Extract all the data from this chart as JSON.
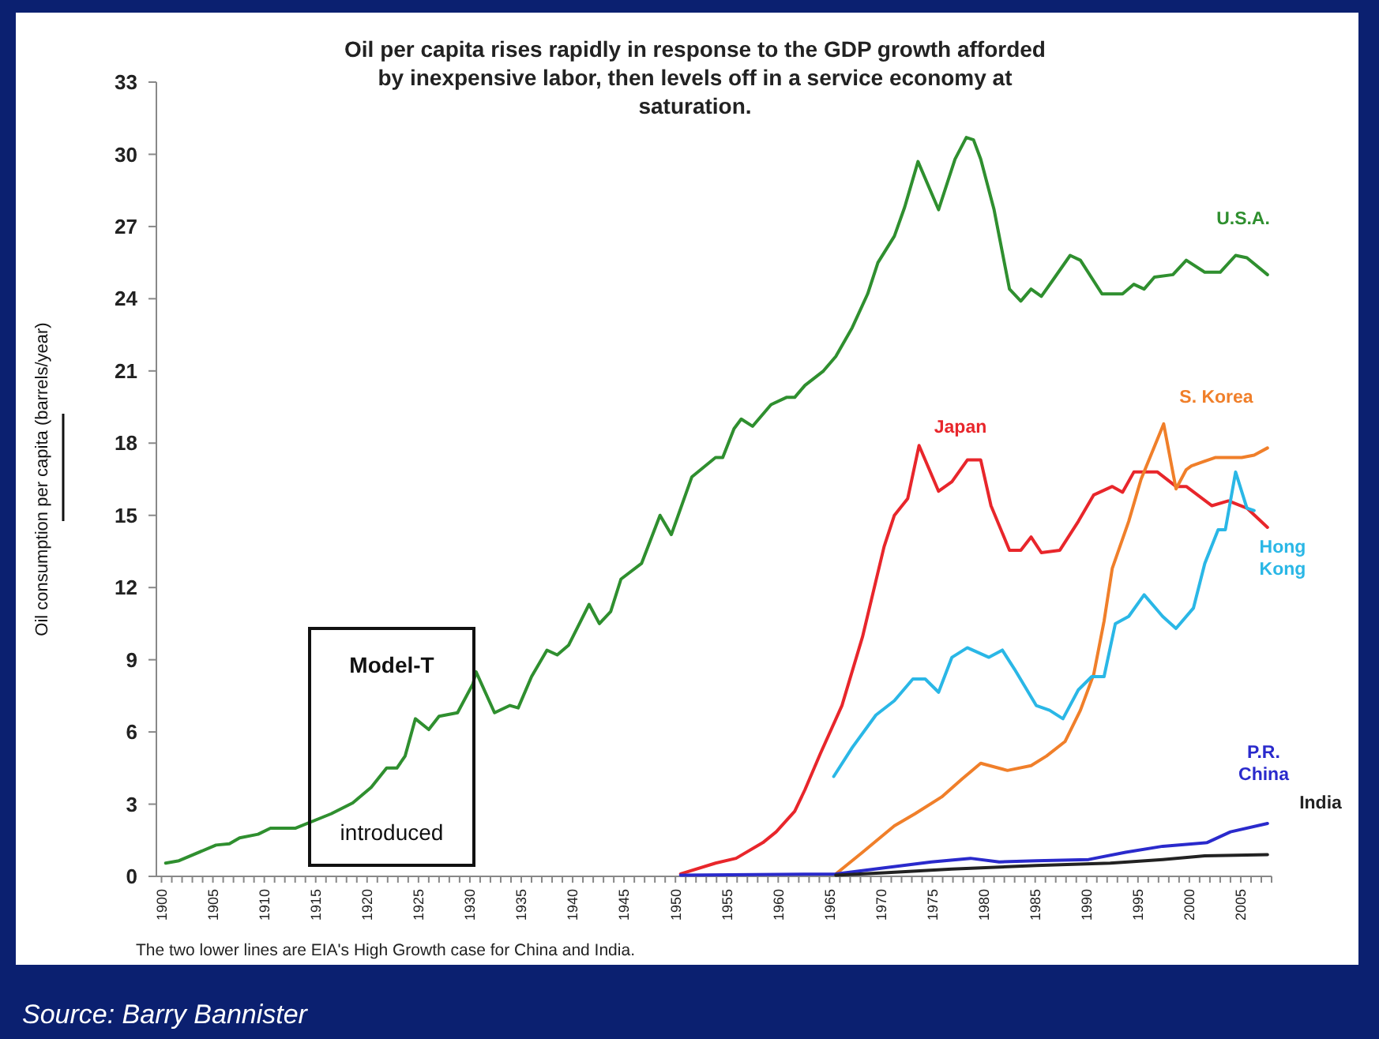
{
  "chart_data": {
    "type": "line",
    "title": "Oil per capita rises rapidly in response to the GDP growth afforded by inexpensive labor, then levels off in a service economy at saturation.",
    "ylabel": "Oil consumption per capita (barrels/year)",
    "xlim": [
      1899.5,
      2008
    ],
    "ylim": [
      0,
      33
    ],
    "yticks": [
      0,
      3,
      6,
      9,
      12,
      15,
      18,
      21,
      24,
      27,
      30,
      33
    ],
    "xticks": [
      1900,
      {
        "value": 1901,
        "label": null
      },
      {
        "value": 1902,
        "label": null
      },
      {
        "value": 1903,
        "label": null
      },
      {
        "value": 1904,
        "label": null
      },
      1905,
      {
        "value": 1906,
        "label": null
      },
      {
        "value": 1907,
        "label": null
      },
      {
        "value": 1908,
        "label": null
      },
      {
        "value": 1909,
        "label": null
      },
      1910,
      {
        "value": 1911,
        "label": null
      },
      {
        "value": 1912,
        "label": null
      },
      {
        "value": 1913,
        "label": null
      },
      {
        "value": 1914,
        "label": null
      },
      1915,
      {
        "value": 1916,
        "label": null
      },
      {
        "value": 1917,
        "label": null
      },
      {
        "value": 1918,
        "label": null
      },
      {
        "value": 1919,
        "label": null
      },
      1920,
      {
        "value": 1921,
        "label": null
      },
      {
        "value": 1922,
        "label": null
      },
      {
        "value": 1923,
        "label": null
      },
      {
        "value": 1924,
        "label": null
      },
      1925,
      {
        "value": 1926,
        "label": null
      },
      {
        "value": 1927,
        "label": null
      },
      {
        "value": 1928,
        "label": null
      },
      {
        "value": 1929,
        "label": null
      },
      1930,
      {
        "value": 1931,
        "label": null
      },
      {
        "value": 1932,
        "label": null
      },
      {
        "value": 1933,
        "label": null
      },
      {
        "value": 1934,
        "label": null
      },
      1935,
      {
        "value": 1936,
        "label": null
      },
      {
        "value": 1937,
        "label": null
      },
      {
        "value": 1938,
        "label": null
      },
      {
        "value": 1939,
        "label": null
      },
      1940,
      {
        "value": 1941,
        "label": null
      },
      {
        "value": 1942,
        "label": null
      },
      {
        "value": 1943,
        "label": null
      },
      {
        "value": 1944,
        "label": null
      },
      1945,
      {
        "value": 1946,
        "label": null
      },
      {
        "value": 1947,
        "label": null
      },
      {
        "value": 1948,
        "label": null
      },
      {
        "value": 1949,
        "label": null
      },
      1950,
      {
        "value": 1951,
        "label": null
      },
      {
        "value": 1952,
        "label": null
      },
      {
        "value": 1953,
        "label": null
      },
      {
        "value": 1954,
        "label": null
      },
      1955,
      {
        "value": 1956,
        "label": null
      },
      {
        "value": 1957,
        "label": null
      },
      {
        "value": 1958,
        "label": null
      },
      {
        "value": 1959,
        "label": null
      },
      1960,
      {
        "value": 1961,
        "label": null
      },
      {
        "value": 1962,
        "label": null
      },
      {
        "value": 1963,
        "label": null
      },
      {
        "value": 1964,
        "label": null
      },
      1965,
      {
        "value": 1966,
        "label": null
      },
      {
        "value": 1967,
        "label": null
      },
      {
        "value": 1968,
        "label": null
      },
      {
        "value": 1969,
        "label": null
      },
      1970,
      {
        "value": 1971,
        "label": null
      },
      {
        "value": 1972,
        "label": null
      },
      {
        "value": 1973,
        "label": null
      },
      {
        "value": 1974,
        "label": null
      },
      1975,
      {
        "value": 1976,
        "label": null
      },
      {
        "value": 1977,
        "label": null
      },
      {
        "value": 1978,
        "label": null
      },
      {
        "value": 1979,
        "label": null
      },
      1980,
      {
        "value": 1981,
        "label": null
      },
      {
        "value": 1982,
        "label": null
      },
      {
        "value": 1983,
        "label": null
      },
      {
        "value": 1984,
        "label": null
      },
      1985,
      {
        "value": 1986,
        "label": null
      },
      {
        "value": 1987,
        "label": null
      },
      {
        "value": 1988,
        "label": null
      },
      {
        "value": 1989,
        "label": null
      },
      1990,
      {
        "value": 1991,
        "label": null
      },
      {
        "value": 1992,
        "label": null
      },
      {
        "value": 1993,
        "label": null
      },
      {
        "value": 1994,
        "label": null
      },
      1995,
      {
        "value": 1996,
        "label": null
      },
      {
        "value": 1997,
        "label": null
      },
      {
        "value": 1998,
        "label": null
      },
      {
        "value": 1999,
        "label": null
      },
      2000,
      {
        "value": 2001,
        "label": null
      },
      {
        "value": 2002,
        "label": null
      },
      {
        "value": 2003,
        "label": null
      },
      {
        "value": 2004,
        "label": null
      },
      2005,
      {
        "value": 2006,
        "label": null
      },
      {
        "value": 2007,
        "label": null
      },
      {
        "value": 2008,
        "label": null
      }
    ],
    "grid": false,
    "marker": "none",
    "line_style": "solid",
    "series": [
      {
        "name": "U.S.A.",
        "color": "#2f8f2f",
        "x": [
          1900.4,
          1901.7,
          1905.3,
          1906.6,
          1907.6,
          1909.4,
          1910.6,
          1913,
          1916.5,
          1918.6,
          1920.4,
          1921.9,
          1922.9,
          1923.7,
          1924.7,
          1926,
          1927,
          1928.8,
          1930.3,
          1930.6,
          1932.4,
          1933.9,
          1934.7,
          1936,
          1937.5,
          1938.5,
          1939.6,
          1941.6,
          1942.6,
          1943.7,
          1944.7,
          1946.7,
          1948.5,
          1949.6,
          1951.6,
          1953.9,
          1954.6,
          1955.7,
          1956.4,
          1957.5,
          1959.3,
          1960.8,
          1961.6,
          1962.6,
          1964.4,
          1965.6,
          1967.2,
          1968.7,
          1969.7,
          1971.3,
          1972.3,
          1973.6,
          1975.6,
          1977.2,
          1978.3,
          1979,
          1979.7,
          1981,
          1982.5,
          1983.6,
          1984.6,
          1985.6,
          1986.6,
          1988.4,
          1989.4,
          1991.5,
          1993.5,
          1994.6,
          1995.6,
          1996.6,
          1998.4,
          1999.7,
          2001.5,
          2003,
          2004.5,
          2005.6,
          2007.6
        ],
        "values": [
          0.55,
          0.65,
          1.3,
          1.35,
          1.6,
          1.75,
          2.0,
          2.0,
          2.6,
          3.05,
          3.7,
          4.5,
          4.5,
          5.0,
          6.55,
          6.1,
          6.65,
          6.8,
          8.0,
          8.5,
          6.8,
          7.1,
          7.0,
          8.3,
          9.4,
          9.2,
          9.6,
          11.3,
          10.5,
          11.0,
          12.35,
          13.0,
          15.0,
          14.2,
          16.6,
          17.4,
          17.4,
          18.6,
          19.0,
          18.7,
          19.6,
          19.9,
          19.9,
          20.4,
          21.0,
          21.6,
          22.8,
          24.2,
          25.5,
          26.6,
          27.8,
          29.7,
          27.7,
          29.8,
          30.7,
          30.6,
          29.8,
          27.7,
          24.4,
          23.9,
          24.4,
          24.1,
          24.7,
          25.8,
          25.6,
          24.2,
          24.2,
          24.6,
          24.4,
          24.9,
          25.0,
          25.6,
          25.1,
          25.1,
          25.8,
          25.7,
          25.0
        ]
      },
      {
        "name": "Japan",
        "color": "#e8262b",
        "x": [
          1950.5,
          1953.9,
          1955.9,
          1958.5,
          1959.8,
          1961.6,
          1962.6,
          1964.1,
          1966.2,
          1968.2,
          1970.3,
          1971.3,
          1972.6,
          1973.7,
          1975.6,
          1976.9,
          1978.4,
          1979.7,
          1980.7,
          1982.5,
          1983.6,
          1984.6,
          1985.6,
          1987.4,
          1989.2,
          1990.7,
          1992.5,
          1993.5,
          1994.6,
          1996.9,
          1998.7,
          1999.7,
          2002.2,
          2003.8,
          2005.6,
          2007.6
        ],
        "values": [
          0.1,
          0.55,
          0.75,
          1.4,
          1.85,
          2.7,
          3.6,
          5.1,
          7.1,
          9.95,
          13.7,
          15.0,
          15.7,
          17.9,
          16.0,
          16.4,
          17.3,
          17.3,
          15.4,
          13.55,
          13.55,
          14.1,
          13.45,
          13.55,
          14.75,
          15.85,
          16.2,
          15.96,
          16.8,
          16.8,
          16.2,
          16.2,
          15.4,
          15.6,
          15.3,
          14.5
        ]
      },
      {
        "name": "S. Korea",
        "color": "#f07f2a",
        "x": [
          1965.6,
          1968.2,
          1971.3,
          1973.3,
          1975.9,
          1977.9,
          1979.7,
          1982.3,
          1984.6,
          1986.1,
          1987.9,
          1989.4,
          1990.7,
          1991.7,
          1992.5,
          1994.1,
          1995.3,
          1997.5,
          1998.7,
          1999.7,
          2000.2,
          2002.5,
          2005.1,
          2006.3,
          2007.6
        ],
        "values": [
          0.1,
          1.0,
          2.1,
          2.6,
          3.3,
          4.05,
          4.7,
          4.4,
          4.6,
          5.0,
          5.6,
          6.9,
          8.4,
          10.6,
          12.8,
          14.75,
          16.5,
          18.8,
          16.1,
          16.9,
          17.05,
          17.4,
          17.4,
          17.5,
          17.8
        ]
      },
      {
        "name": "Hong Kong",
        "color": "#2ab7e6",
        "x": [
          1965.4,
          1967.2,
          1969.5,
          1971.3,
          1973.1,
          1974.3,
          1975.6,
          1976.9,
          1978.4,
          1980.5,
          1981.8,
          1983,
          1985.1,
          1986.4,
          1987.7,
          1989.2,
          1990.5,
          1991.7,
          1992.8,
          1994.1,
          1995.6,
          1997.4,
          1998.7,
          2000.4,
          2001.5,
          2002.8,
          2003.5,
          2004.5,
          2005.6,
          2006.3
        ],
        "values": [
          4.15,
          5.35,
          6.7,
          7.3,
          8.2,
          8.2,
          7.65,
          9.1,
          9.5,
          9.1,
          9.4,
          8.6,
          7.1,
          6.9,
          6.55,
          7.75,
          8.3,
          8.3,
          10.5,
          10.8,
          11.7,
          10.8,
          10.3,
          11.15,
          13.0,
          14.4,
          14.4,
          16.8,
          15.3,
          15.2
        ]
      },
      {
        "name": "P.R. China",
        "color": "#2a2acc",
        "x": [
          1950.5,
          1965.6,
          1970.3,
          1974.9,
          1978.7,
          1981.5,
          1985.1,
          1990.2,
          1993.8,
          1997.4,
          2001.7,
          2004,
          2007.6
        ],
        "values": [
          0.05,
          0.1,
          0.35,
          0.6,
          0.75,
          0.6,
          0.65,
          0.7,
          1.0,
          1.25,
          1.4,
          1.85,
          2.2
        ]
      },
      {
        "name": "India",
        "color": "#222222",
        "x": [
          1965.6,
          1970.3,
          1976.9,
          1985.1,
          1992.3,
          1997.4,
          2001.5,
          2007.6
        ],
        "values": [
          0.05,
          0.15,
          0.3,
          0.45,
          0.55,
          0.7,
          0.85,
          0.9
        ]
      }
    ],
    "annotations": [
      "Model-T",
      "introduced",
      "The two lower lines are EIA's High Growth case for China and India.",
      "Source: Barry Bannister"
    ]
  }
}
